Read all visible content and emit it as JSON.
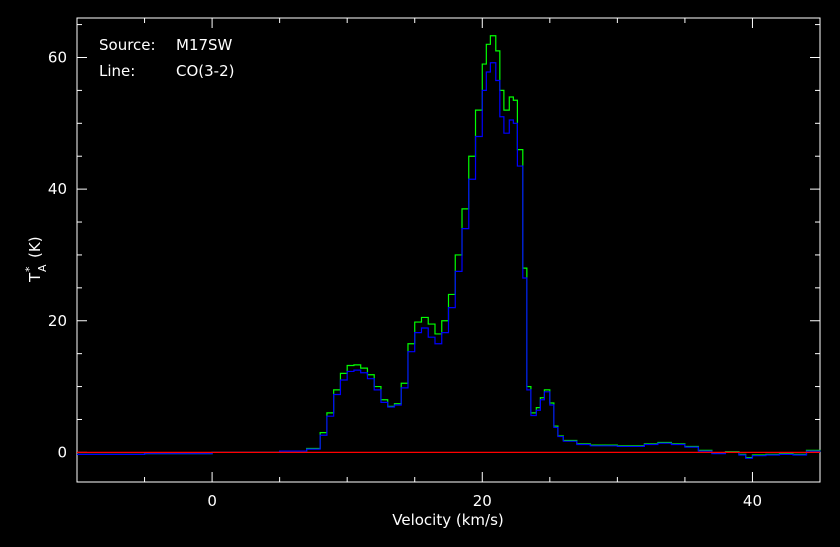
{
  "annotations": {
    "source_label": "Source:",
    "source_value": "M17SW",
    "line_label": "Line:",
    "line_value": "CO(3-2)"
  },
  "chart_data": {
    "type": "line",
    "title": "",
    "xlabel": "Velocity (km/s)",
    "ylabel": "T",
    "ylabel_sup": "*",
    "ylabel_sub": "A",
    "ylabel_unit": "(K)",
    "xlim": [
      -10,
      45
    ],
    "ylim": [
      -4.5,
      66
    ],
    "x_ticks": [
      0,
      20,
      40
    ],
    "y_ticks": [
      0,
      20,
      40,
      60
    ],
    "grid": false,
    "background": "#000000",
    "axis_color": "#ffffff",
    "series": [
      {
        "color": "#00ff00",
        "x": [
          -10,
          -5,
          0,
          5,
          7,
          8,
          8.5,
          9,
          9.5,
          10,
          10.5,
          11,
          11.5,
          12,
          12.5,
          13,
          13.5,
          14,
          14.5,
          15,
          15.5,
          16,
          16.5,
          17,
          17.5,
          18,
          18.5,
          19,
          19.5,
          20,
          20.3,
          20.6,
          21,
          21.3,
          21.6,
          22,
          22.3,
          22.6,
          23,
          23.3,
          23.6,
          24,
          24.3,
          24.6,
          25,
          25.3,
          25.6,
          26,
          27,
          28,
          30,
          32,
          33,
          34,
          35,
          36,
          37,
          38,
          39,
          39.5,
          40,
          41,
          42,
          43,
          44,
          45
        ],
        "y": [
          -0.3,
          -0.2,
          0,
          0.2,
          0.6,
          3,
          6,
          9.5,
          12,
          13.2,
          13.3,
          12.8,
          11.8,
          10,
          8,
          7,
          7.4,
          10.5,
          16.5,
          19.8,
          20.5,
          19.5,
          18,
          20,
          24,
          30,
          37,
          45,
          52,
          59,
          62,
          63.3,
          61,
          55,
          52,
          54,
          53.5,
          46,
          28,
          10,
          6,
          6.8,
          8.3,
          9.5,
          7.5,
          4,
          2.5,
          1.8,
          1.3,
          1.1,
          1.0,
          1.3,
          1.5,
          1.3,
          0.9,
          0.3,
          -0.1,
          0.1,
          -0.3,
          -0.8,
          -0.4,
          -0.3,
          -0.2,
          -0.3,
          0.3,
          0.2
        ]
      },
      {
        "color": "#0000ff",
        "x": [
          -10,
          -5,
          0,
          5,
          7,
          8,
          8.5,
          9,
          9.5,
          10,
          10.5,
          11,
          11.5,
          12,
          12.5,
          13,
          13.5,
          14,
          14.5,
          15,
          15.5,
          16,
          16.5,
          17,
          17.5,
          18,
          18.5,
          19,
          19.5,
          20,
          20.3,
          20.6,
          21,
          21.3,
          21.6,
          22,
          22.3,
          22.6,
          23,
          23.3,
          23.6,
          24,
          24.3,
          24.6,
          25,
          25.3,
          25.6,
          26,
          27,
          28,
          30,
          32,
          33,
          34,
          35,
          36,
          37,
          38,
          39,
          39.5,
          40,
          41,
          42,
          43,
          44,
          45
        ],
        "y": [
          -0.3,
          -0.2,
          0,
          0.2,
          0.5,
          2.6,
          5.5,
          8.8,
          11,
          12.3,
          12.5,
          12.1,
          11.2,
          9.5,
          7.6,
          6.9,
          7.2,
          9.8,
          15.3,
          18.2,
          18.9,
          17.5,
          16.5,
          18.2,
          22,
          27.5,
          34,
          41.5,
          48,
          55,
          57.8,
          59.2,
          56.5,
          51,
          48.5,
          50.5,
          50,
          43.5,
          26.5,
          9.5,
          5.6,
          6.4,
          8,
          9.2,
          7.2,
          3.8,
          2.4,
          1.7,
          1.2,
          1.0,
          0.9,
          1.2,
          1.4,
          1.2,
          0.8,
          0.2,
          -0.2,
          0.0,
          -0.4,
          -0.9,
          -0.5,
          -0.4,
          -0.3,
          -0.4,
          0.2,
          0.1
        ]
      },
      {
        "color": "#ff0000",
        "x": [
          -10,
          45
        ],
        "y": [
          0,
          0
        ]
      }
    ]
  }
}
